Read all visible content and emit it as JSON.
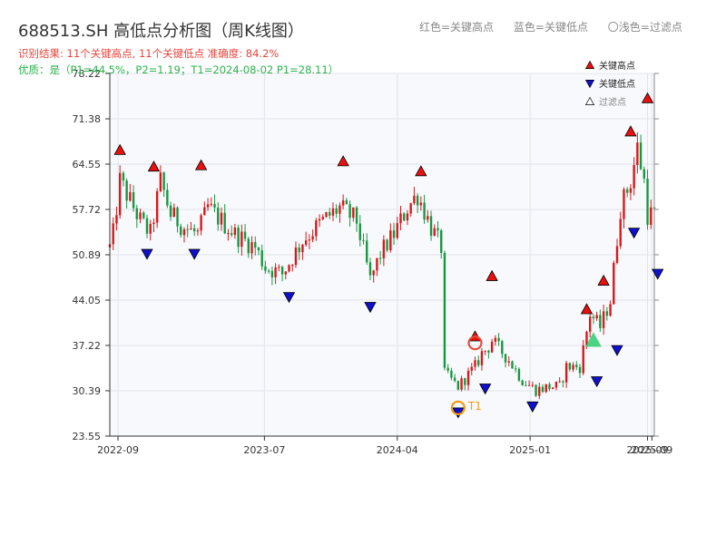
{
  "chart_data": {
    "type": "candlestick",
    "title": "688513.SH 高低点分析图（周K线图）",
    "subtitle_result": "识别结果: 11个关键高点, 11个关键低点   准确度: 84.2%",
    "subtitle_quality": "优质：是（P1=44.5%，P2=1.19；T1=2024-08-02 P1=28.11）",
    "top_legend": [
      "红色=关键高点",
      "蓝色=关键低点",
      "〇浅色=过滤点"
    ],
    "legend": [
      "关键高点",
      "关键低点",
      "过滤点"
    ],
    "y_ticks": [
      "23.55",
      "30.39",
      "37.22",
      "44.05",
      "50.89",
      "57.72",
      "64.55",
      "71.38",
      "78.22"
    ],
    "ylim": [
      23.55,
      78.22
    ],
    "x_range": [
      "2022-08-15",
      "2025-09-15"
    ],
    "x_ticks": [
      {
        "date": "2022-09-01",
        "label": "2022-09"
      },
      {
        "date": "2023-07-01",
        "label": "2023-07"
      },
      {
        "date": "2024-04-01",
        "label": "2024-04"
      },
      {
        "date": "2025-01-01",
        "label": "2025-01"
      },
      {
        "date": "2025-09-01",
        "label": "2025-09"
      },
      {
        "date": "2025-09-10",
        "label": "2025-09"
      }
    ],
    "price_anchors": [
      [
        "2022-08-15",
        52
      ],
      [
        "2022-08-22",
        54
      ],
      [
        "2022-09-05",
        62
      ],
      [
        "2022-09-19",
        60
      ],
      [
        "2022-10-17",
        56
      ],
      [
        "2022-11-07",
        54
      ],
      [
        "2022-11-28",
        62
      ],
      [
        "2022-12-19",
        57
      ],
      [
        "2023-01-16",
        55
      ],
      [
        "2023-02-13",
        54
      ],
      [
        "2023-03-06",
        58
      ],
      [
        "2023-04-03",
        56
      ],
      [
        "2023-05-01",
        54
      ],
      [
        "2023-06-12",
        52
      ],
      [
        "2023-07-03",
        49
      ],
      [
        "2023-08-07",
        48
      ],
      [
        "2023-09-18",
        53
      ],
      [
        "2023-10-30",
        56
      ],
      [
        "2023-12-04",
        58
      ],
      [
        "2024-01-08",
        56
      ],
      [
        "2024-02-05",
        47
      ],
      [
        "2024-02-26",
        51
      ],
      [
        "2024-03-25",
        54
      ],
      [
        "2024-04-22",
        58
      ],
      [
        "2024-05-13",
        60
      ],
      [
        "2024-06-10",
        55
      ],
      [
        "2024-07-01",
        52
      ],
      [
        "2024-07-08",
        33
      ],
      [
        "2024-08-05",
        31
      ],
      [
        "2024-09-09",
        34
      ],
      [
        "2024-09-23",
        36
      ],
      [
        "2024-10-07",
        37
      ],
      [
        "2024-10-14",
        38
      ],
      [
        "2024-11-18",
        35
      ],
      [
        "2024-12-16",
        32
      ],
      [
        "2025-01-13",
        30.5
      ],
      [
        "2025-02-10",
        31
      ],
      [
        "2025-03-03",
        31
      ],
      [
        "2025-03-17",
        34
      ],
      [
        "2025-04-14",
        34
      ],
      [
        "2025-05-05",
        42
      ],
      [
        "2025-05-26",
        40
      ],
      [
        "2025-06-16",
        44
      ],
      [
        "2025-07-07",
        58
      ],
      [
        "2025-07-28",
        62
      ],
      [
        "2025-08-11",
        67
      ],
      [
        "2025-08-25",
        62
      ],
      [
        "2025-09-01",
        57
      ],
      [
        "2025-09-15",
        57
      ]
    ],
    "key_highs": [
      {
        "date": "2022-09-05",
        "price": 65.7
      },
      {
        "date": "2022-11-14",
        "price": 63.2
      },
      {
        "date": "2023-02-20",
        "price": 63.4
      },
      {
        "date": "2023-12-11",
        "price": 64.0
      },
      {
        "date": "2024-05-20",
        "price": 62.5
      },
      {
        "date": "2024-09-09",
        "price": 37.6
      },
      {
        "date": "2024-10-14",
        "price": 46.7
      },
      {
        "date": "2025-04-28",
        "price": 41.7
      },
      {
        "date": "2025-06-02",
        "price": 46.0
      },
      {
        "date": "2025-07-28",
        "price": 68.5
      },
      {
        "date": "2025-09-01",
        "price": 73.5
      }
    ],
    "key_lows": [
      {
        "date": "2022-10-31",
        "price": 52.0
      },
      {
        "date": "2023-02-06",
        "price": 52.0
      },
      {
        "date": "2023-08-21",
        "price": 45.5
      },
      {
        "date": "2024-02-05",
        "price": 44.0
      },
      {
        "date": "2024-08-05",
        "price": 28.1
      },
      {
        "date": "2024-09-30",
        "price": 31.7
      },
      {
        "date": "2025-01-06",
        "price": 29.0
      },
      {
        "date": "2025-05-19",
        "price": 32.8
      },
      {
        "date": "2025-06-30",
        "price": 37.5
      },
      {
        "date": "2025-08-04",
        "price": 55.2
      },
      {
        "date": "2025-09-22",
        "price": 49.0
      }
    ],
    "filtered_points": [
      {
        "date": "2025-05-12",
        "price": 36.9
      }
    ],
    "highlight_points": [
      {
        "date": "2024-08-05",
        "price": 27.8,
        "label": "T1",
        "color": "#f39c12"
      },
      {
        "date": "2024-09-09",
        "price": 37.6,
        "label": "",
        "color": "#e74c3c"
      }
    ],
    "colors": {
      "up": "#d7191c",
      "down": "#1a9641",
      "high_marker": "#e8110f",
      "low_marker": "#1010cc",
      "filtered_marker": "#2ecc71",
      "plot_bg": "#f7f9fc",
      "grid": "#e0e4ea",
      "axis": "#333333"
    },
    "grid": true,
    "legend_position": "top-right"
  }
}
